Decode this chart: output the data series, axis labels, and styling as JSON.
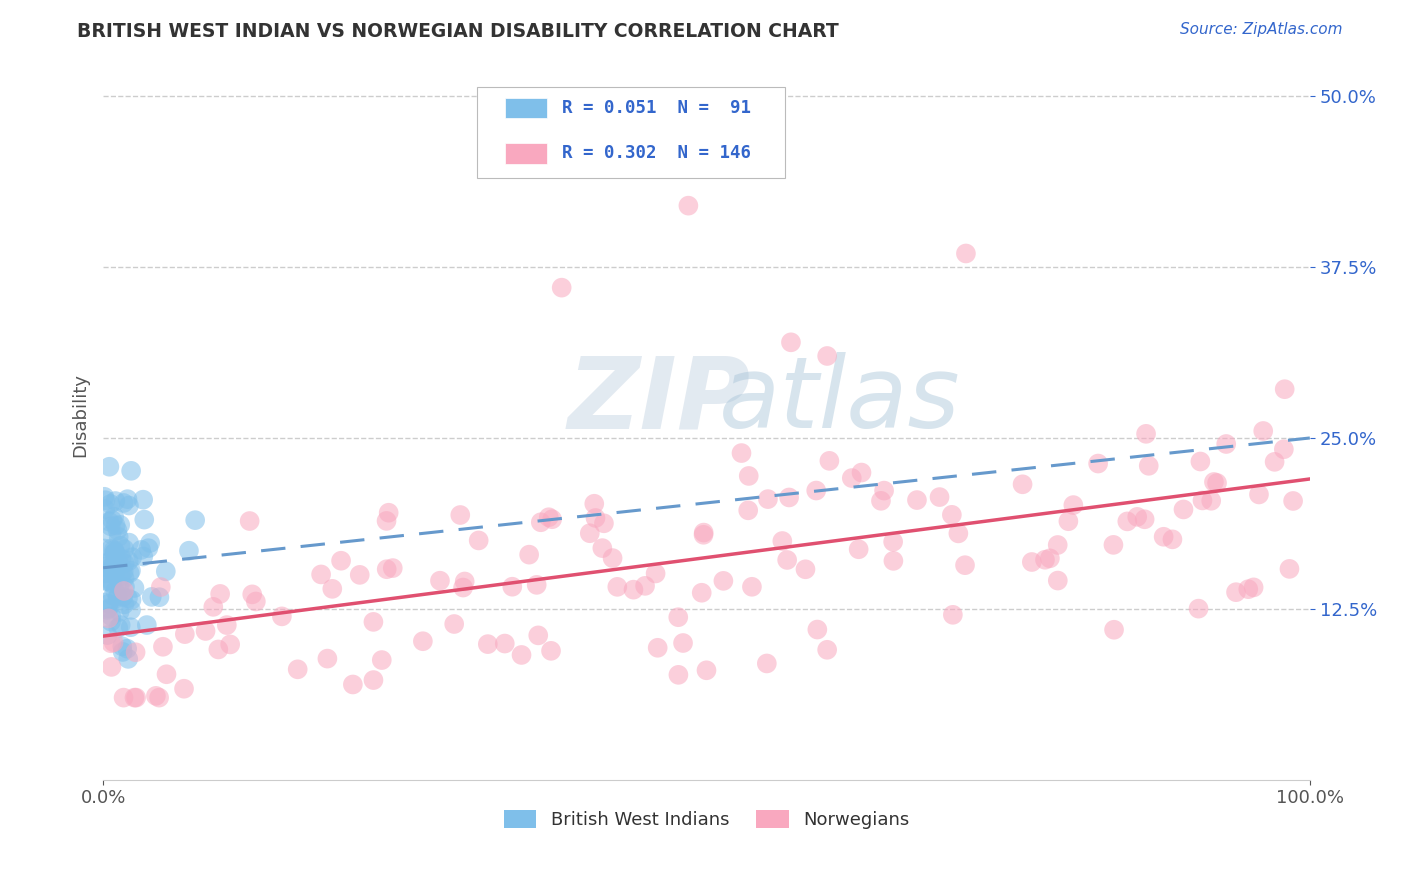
{
  "title": "BRITISH WEST INDIAN VS NORWEGIAN DISABILITY CORRELATION CHART",
  "source": "Source: ZipAtlas.com",
  "ylabel": "Disability",
  "xlim": [
    0,
    1.0
  ],
  "ylim": [
    0.0,
    0.5334
  ],
  "yticks": [
    0.125,
    0.25,
    0.375,
    0.5
  ],
  "ytick_labels": [
    "12.5%",
    "25.0%",
    "37.5%",
    "50.0%"
  ],
  "xticks": [
    0.0,
    1.0
  ],
  "xtick_labels": [
    "0.0%",
    "100.0%"
  ],
  "legend_R1": "R = 0.051",
  "legend_N1": "N =  91",
  "legend_R2": "R = 0.302",
  "legend_N2": "N = 146",
  "blue_color": "#7fbfea",
  "pink_color": "#f9a8bf",
  "blue_line_color": "#6699cc",
  "pink_line_color": "#e05070",
  "legend_text_color": "#3366cc",
  "tick_color": "#3366cc",
  "background_color": "#ffffff",
  "grid_color": "#c8c8c8",
  "title_color": "#333333",
  "watermark_zip": "ZIP",
  "watermark_atlas": "atlas",
  "blue_intercept": 0.155,
  "blue_slope": 0.095,
  "pink_intercept": 0.105,
  "pink_slope": 0.115
}
